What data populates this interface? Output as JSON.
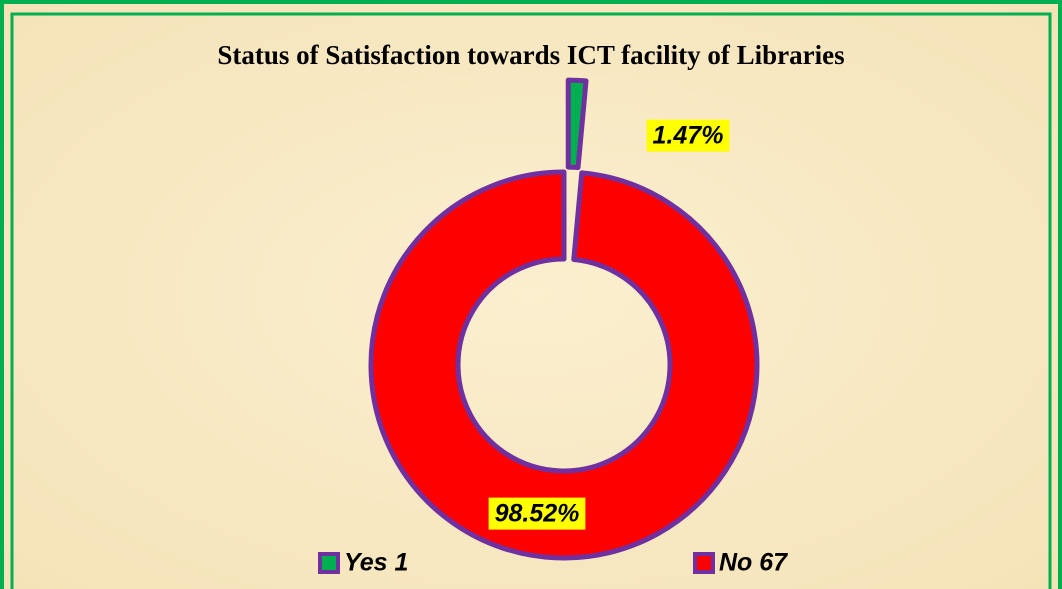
{
  "chart_data": {
    "type": "donut",
    "title": "Status of Satisfaction towards ICT facility of Libraries",
    "categories": [
      "Yes 1",
      "No 67"
    ],
    "values": [
      1.47,
      98.52
    ],
    "value_labels": [
      "1.47%",
      "98.52%"
    ],
    "colors": [
      "#00b050",
      "#ff0000"
    ],
    "legend": "bottom"
  }
}
